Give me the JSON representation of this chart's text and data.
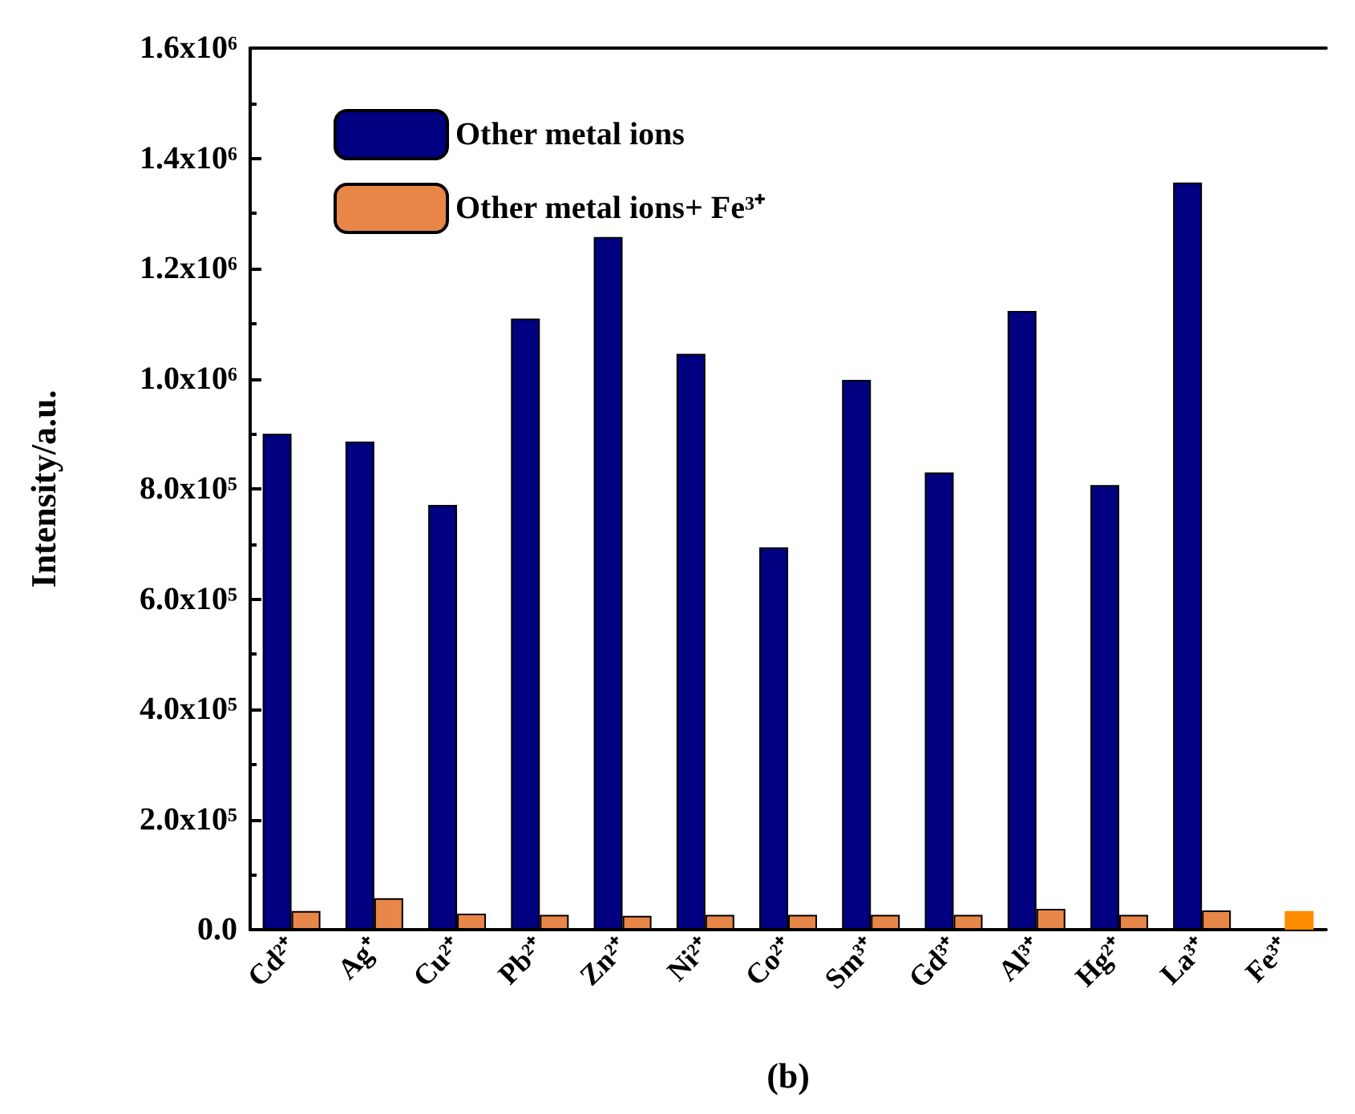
{
  "chart_data": {
    "type": "bar",
    "xlabel": "(b)",
    "ylabel": "Intensity/a.u.",
    "categories": [
      "Cd²⁺",
      "Ag⁺",
      "Cu²⁺",
      "Pb²⁺",
      "Zn²⁺",
      "Ni²⁺",
      "Co²⁺",
      "Sm³⁺",
      "Gd³⁺",
      "Al³⁺",
      "Hg²⁺",
      "La³⁺",
      "Fe³⁺"
    ],
    "series": [
      {
        "name": "Other metal ions",
        "color": "#000080",
        "values": [
          900000,
          886000,
          771000,
          1109000,
          1257000,
          1045000,
          694000,
          998000,
          830000,
          1123000,
          807000,
          1356000,
          null
        ]
      },
      {
        "name": "Other metal ions+ Fe³⁺",
        "color": "#e8864a",
        "colors": [
          "#e8864a",
          "#e8864a",
          "#e8864a",
          "#e8864a",
          "#e8864a",
          "#e8864a",
          "#e8864a",
          "#e8864a",
          "#e8864a",
          "#e8864a",
          "#e8864a",
          "#e8864a",
          "#ff8c00"
        ],
        "values": [
          34000,
          57000,
          29000,
          27000,
          25000,
          27000,
          27000,
          27000,
          27000,
          38000,
          27000,
          35000,
          34000
        ]
      }
    ],
    "ylim": [
      0,
      1600000
    ],
    "yticks": [
      {
        "value": 0,
        "label": "0.0"
      },
      {
        "value": 200000,
        "label": "2.0x10⁵"
      },
      {
        "value": 400000,
        "label": "4.0x10⁵"
      },
      {
        "value": 600000,
        "label": "6.0x10⁵"
      },
      {
        "value": 800000,
        "label": "8.0x10⁵"
      },
      {
        "value": 1000000,
        "label": "1.0x10⁶"
      },
      {
        "value": 1200000,
        "label": "1.2x10⁶"
      },
      {
        "value": 1400000,
        "label": "1.4x10⁶"
      },
      {
        "value": 1600000,
        "label": "1.6x10⁶"
      }
    ],
    "legend": "top left",
    "grid": false
  }
}
